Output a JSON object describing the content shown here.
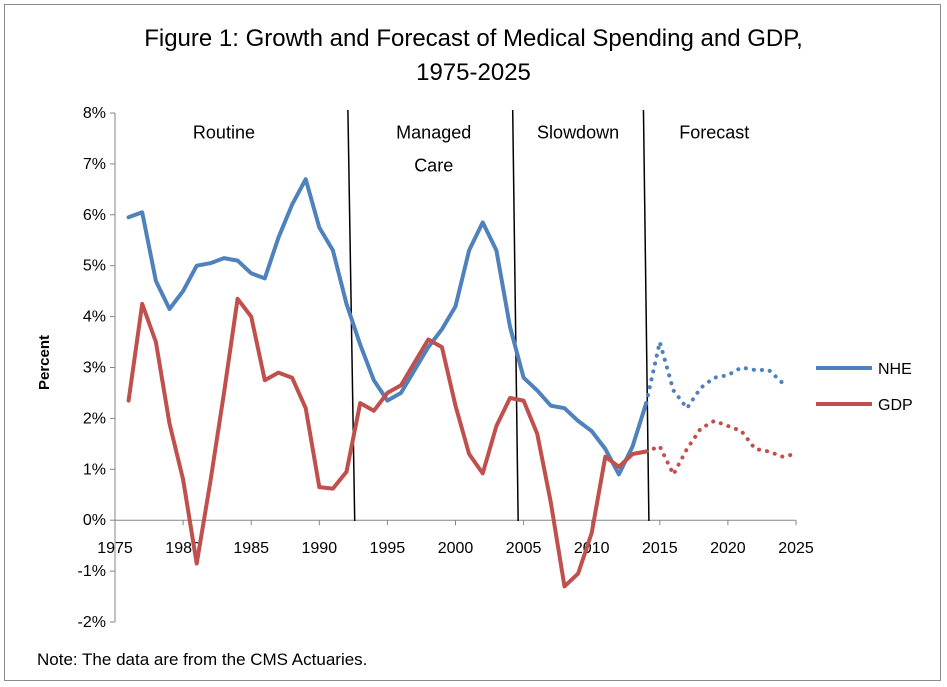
{
  "chart_data": {
    "type": "line",
    "title_line1": "Figure 1: Growth and Forecast of Medical Spending and GDP,",
    "title_line2": "1975-2025",
    "xlabel": "",
    "ylabel": "Percent",
    "xlim": [
      1975,
      2025
    ],
    "ylim": [
      -2,
      8
    ],
    "x_ticks": [
      "1975",
      "1980",
      "1985",
      "1990",
      "1995",
      "2000",
      "2005",
      "2010",
      "2015",
      "2020",
      "2025"
    ],
    "y_ticks": [
      "8%",
      "7%",
      "6%",
      "5%",
      "4%",
      "3%",
      "2%",
      "1%",
      "0%",
      "-1%",
      "-2%"
    ],
    "era_labels": [
      {
        "text": "Routine",
        "x": 1983.0,
        "y": 7.5
      },
      {
        "text": "Managed",
        "x": 1998.4,
        "y": 7.5
      },
      {
        "text": "Care",
        "x": 1998.4,
        "y": 6.85
      },
      {
        "text": "Slowdown",
        "x": 2009.0,
        "y": 7.5
      },
      {
        "text": "Forecast",
        "x": 2019.0,
        "y": 7.5
      }
    ],
    "dividers": [
      {
        "x_top": 1992.1,
        "x_bottom": 1992.6
      },
      {
        "x_top": 2004.2,
        "x_bottom": 2004.6
      },
      {
        "x_top": 2013.8,
        "x_bottom": 2014.2
      }
    ],
    "series": [
      {
        "name": "NHE",
        "color": "#4F81BD",
        "actual_x": [
          1976,
          1977,
          1978,
          1979,
          1980,
          1981,
          1982,
          1983,
          1984,
          1985,
          1986,
          1987,
          1988,
          1989,
          1990,
          1991,
          1992,
          1993,
          1994,
          1995,
          1996,
          1997,
          1998,
          1999,
          2000,
          2001,
          2002,
          2003,
          2004,
          2005,
          2006,
          2007,
          2008,
          2009,
          2010,
          2011,
          2012,
          2013,
          2014
        ],
        "actual_y": [
          5.95,
          6.05,
          4.7,
          4.15,
          4.5,
          5.0,
          5.05,
          5.15,
          5.1,
          4.85,
          4.75,
          5.55,
          6.2,
          6.7,
          5.75,
          5.3,
          4.25,
          3.45,
          2.75,
          2.35,
          2.5,
          2.95,
          3.4,
          3.75,
          4.2,
          5.3,
          5.85,
          5.3,
          3.8,
          2.8,
          2.55,
          2.25,
          2.2,
          1.95,
          1.75,
          1.4,
          0.9,
          1.45,
          2.3
        ],
        "forecast_x": [
          2014,
          2015,
          2016,
          2017,
          2018,
          2019,
          2020,
          2021,
          2022,
          2023,
          2024
        ],
        "forecast_y": [
          2.3,
          3.5,
          2.55,
          2.2,
          2.6,
          2.8,
          2.85,
          3.0,
          2.95,
          2.95,
          2.7
        ]
      },
      {
        "name": "GDP",
        "color": "#C0504D",
        "actual_x": [
          1976,
          1977,
          1978,
          1979,
          1980,
          1981,
          1982,
          1983,
          1984,
          1985,
          1986,
          1987,
          1988,
          1989,
          1990,
          1991,
          1992,
          1993,
          1994,
          1995,
          1996,
          1997,
          1998,
          1999,
          2000,
          2001,
          2002,
          2003,
          2004,
          2005,
          2006,
          2007,
          2008,
          2009,
          2010,
          2011,
          2012,
          2013,
          2014
        ],
        "actual_y": [
          2.35,
          4.25,
          3.5,
          1.9,
          0.8,
          -0.85,
          0.75,
          2.5,
          4.35,
          4.0,
          2.75,
          2.9,
          2.8,
          2.2,
          0.65,
          0.62,
          0.95,
          2.3,
          2.15,
          2.5,
          2.65,
          3.1,
          3.55,
          3.4,
          2.25,
          1.3,
          0.92,
          1.85,
          2.4,
          2.35,
          1.7,
          0.35,
          -1.3,
          -1.05,
          -0.25,
          1.25,
          1.05,
          1.3,
          1.35
        ],
        "forecast_x": [
          2014,
          2015,
          2016,
          2017,
          2018,
          2019,
          2020,
          2021,
          2022,
          2023,
          2024,
          2025
        ],
        "forecast_y": [
          1.35,
          1.45,
          0.9,
          1.4,
          1.8,
          1.95,
          1.85,
          1.75,
          1.4,
          1.35,
          1.25,
          1.3
        ]
      }
    ],
    "legend_position": "right"
  },
  "note": "Note: The data are from the CMS Actuaries."
}
